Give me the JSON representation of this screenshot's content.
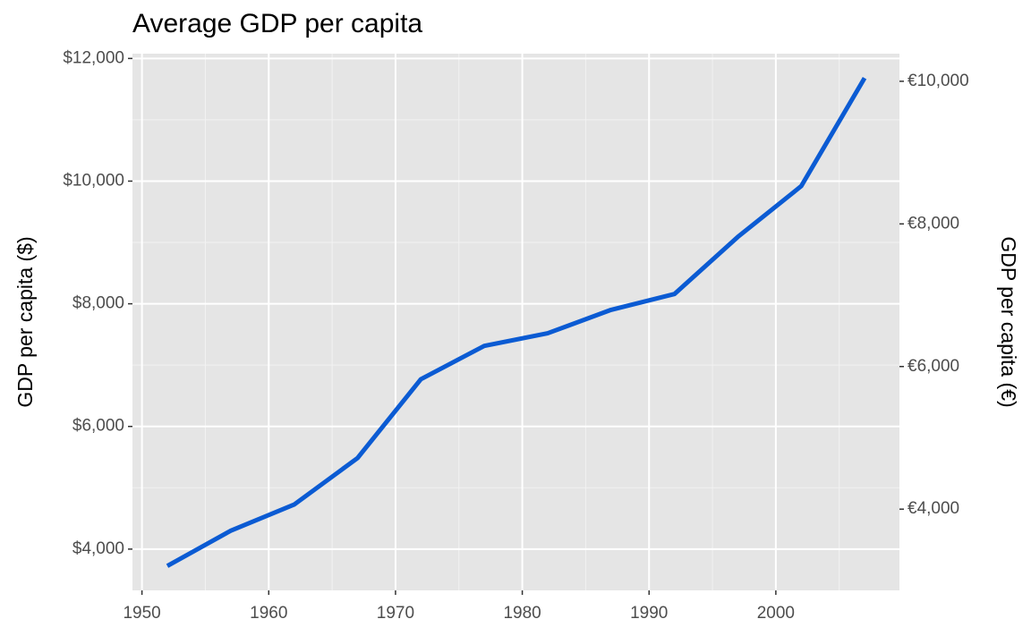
{
  "chart_data": {
    "type": "line",
    "title": "Average GDP per capita",
    "y_label": "GDP per capita ($)",
    "y2_label": "GDP per capita (€)",
    "x": [
      1952,
      1957,
      1962,
      1967,
      1972,
      1977,
      1982,
      1987,
      1992,
      1997,
      2002,
      2007
    ],
    "values": [
      3725.3,
      4299.4,
      4725.8,
      5483.7,
      6770.1,
      7313.2,
      7518.9,
      7900.9,
      8158.6,
      9090.2,
      9917.8,
      11680.1
    ],
    "color": "#0b5bd3",
    "xlim": [
      1949.25,
      2009.75
    ],
    "xticks": [
      1950,
      1960,
      1970,
      1980,
      1990,
      2000
    ],
    "ylim": [
      3327,
      12078
    ],
    "yticks": [
      {
        "value": 4000,
        "label": "$4,000"
      },
      {
        "value": 6000,
        "label": "$6,000"
      },
      {
        "value": 8000,
        "label": "$8,000"
      },
      {
        "value": 10000,
        "label": "$10,000"
      },
      {
        "value": 12000,
        "label": "$12,000"
      }
    ],
    "y2lim": [
      2861,
      10387
    ],
    "y2ticks": [
      {
        "value": 4000,
        "label": "€4,000"
      },
      {
        "value": 6000,
        "label": "€6,000"
      },
      {
        "value": 8000,
        "label": "€8,000"
      },
      {
        "value": 10000,
        "label": "€10,000"
      }
    ],
    "grid": true
  }
}
